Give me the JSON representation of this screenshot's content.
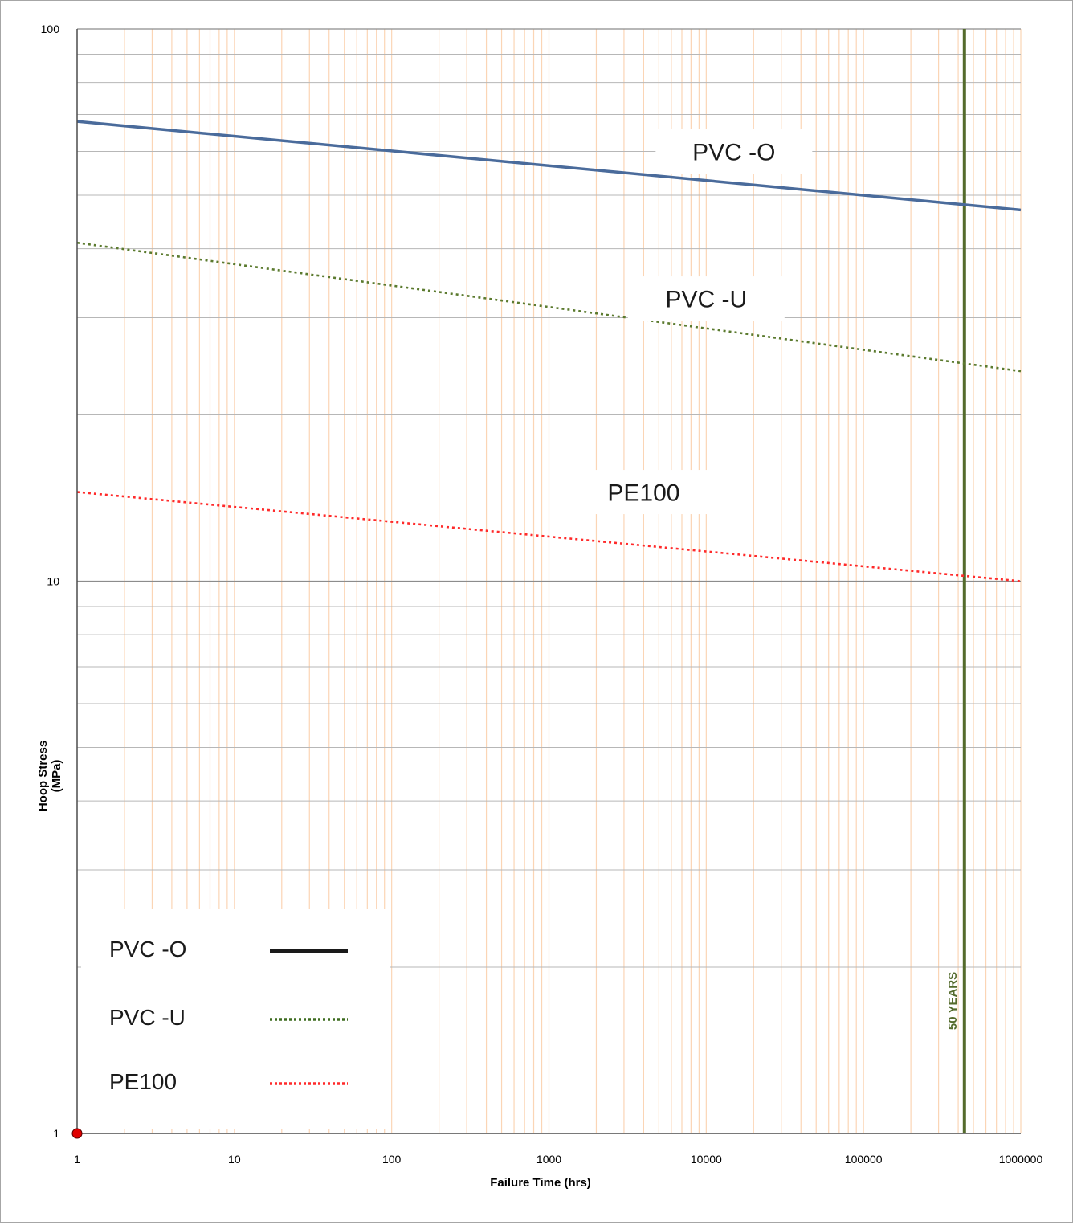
{
  "chart_data": {
    "type": "line",
    "xlabel": "Failure Time (hrs)",
    "ylabel": "Hoop Stress (MPa)",
    "ylabel_lines": [
      "Hoop Stress",
      "(MPa)"
    ],
    "x_scale": "log",
    "y_scale": "log",
    "xlim": [
      1,
      1000000
    ],
    "ylim": [
      1,
      100
    ],
    "x_ticks": [
      1,
      10,
      100,
      1000,
      10000,
      100000,
      1000000
    ],
    "x_tick_labels": [
      "1",
      "10",
      "100",
      "1000",
      "10000",
      "100000",
      "1000000"
    ],
    "y_ticks": [
      1,
      10,
      100
    ],
    "y_tick_labels": [
      "1",
      "10",
      "100"
    ],
    "grid": true,
    "series": [
      {
        "name": "PVC -O",
        "x": [
          1,
          1000000
        ],
        "y": [
          68,
          47
        ],
        "color": "#4a6b9b",
        "style": "solid"
      },
      {
        "name": "PVC -U",
        "x": [
          1,
          1000000
        ],
        "y": [
          41,
          24
        ],
        "color": "#5b7a2e",
        "style": "dotted"
      },
      {
        "name": "PE100",
        "x": [
          1,
          1000000
        ],
        "y": [
          14.5,
          10
        ],
        "color": "#ff2a2a",
        "style": "dotted"
      }
    ],
    "series_labels": [
      {
        "text": "PVC -O",
        "x": 15000,
        "y": 60
      },
      {
        "text": "PVC -U",
        "x": 10000,
        "y": 32.5
      },
      {
        "text": "PE100",
        "x": 4000,
        "y": 14.5
      }
    ],
    "reference_line": {
      "label": "50 YEARS",
      "x": 438000,
      "color": "#546b2c"
    },
    "legend": {
      "placement": "bottom-left",
      "items": [
        {
          "label": "PVC -O",
          "color": "#1a1a1a",
          "style": "solid"
        },
        {
          "label": "PVC -U",
          "color": "#3d6b1f",
          "style": "dotted"
        },
        {
          "label": "PE100",
          "color": "#ff2a2a",
          "style": "dotted"
        }
      ]
    },
    "origin_marker": {
      "x": 1,
      "y": 1,
      "color": "#e00000"
    },
    "colors": {
      "minor_grid_x": "#fbd5b5",
      "minor_grid_y": "#b7b7b7",
      "major_grid_y": "#8c8c8c",
      "axis": "#4d4d4d"
    }
  }
}
